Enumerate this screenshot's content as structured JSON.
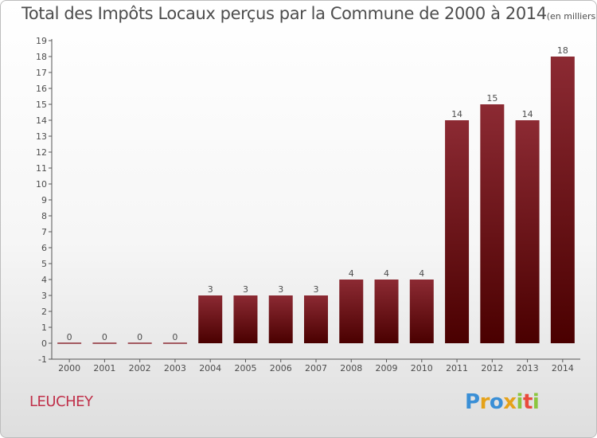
{
  "title": "Total des Impôts Locaux perçus par la Commune de 2000 à 2014",
  "unit_note": "(en milliers d'€)",
  "commune": "LEUCHEY",
  "brand": {
    "letters": [
      {
        "char": "P",
        "color": "#3a8fd6"
      },
      {
        "char": "r",
        "color": "#e5a21a"
      },
      {
        "char": "o",
        "color": "#3a8fd6"
      },
      {
        "char": "x",
        "color": "#e5a21a"
      },
      {
        "char": "i",
        "color": "#8cc63f"
      },
      {
        "char": "t",
        "color": "#e94b3c"
      },
      {
        "char": "i",
        "color": "#8cc63f"
      }
    ]
  },
  "colors": {
    "bar_top": "#8c2a33",
    "bar_bottom": "#4a0000",
    "axis": "#555555",
    "text": "#4d4d4d"
  },
  "chart_data": {
    "type": "bar",
    "categories": [
      "2000",
      "2001",
      "2002",
      "2003",
      "2004",
      "2005",
      "2006",
      "2007",
      "2008",
      "2009",
      "2010",
      "2011",
      "2012",
      "2013",
      "2014"
    ],
    "values": [
      0,
      0,
      0,
      0,
      3,
      3,
      3,
      3,
      4,
      4,
      4,
      14,
      15,
      14,
      18
    ],
    "data_labels": [
      "0",
      "0",
      "0",
      "0",
      "3",
      "3",
      "3",
      "3",
      "4",
      "4",
      "4",
      "14",
      "15",
      "14",
      "18"
    ],
    "ylim": [
      -1,
      19
    ],
    "yticks": [
      "-1",
      "0",
      "1",
      "2",
      "3",
      "4",
      "5",
      "6",
      "7",
      "8",
      "9",
      "10",
      "11",
      "12",
      "13",
      "14",
      "15",
      "16",
      "17",
      "18",
      "19"
    ],
    "grid": false,
    "xlabel": "",
    "ylabel": ""
  }
}
